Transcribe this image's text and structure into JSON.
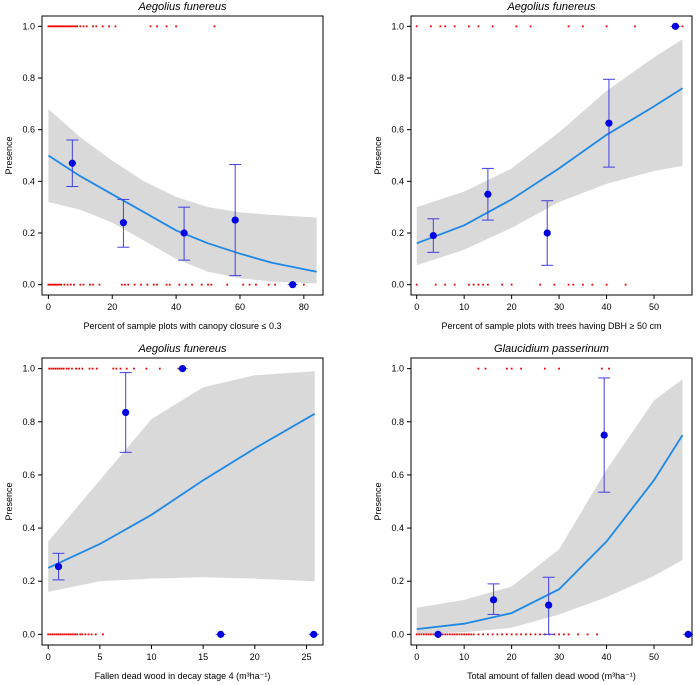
{
  "chart_data": [
    {
      "type": "line",
      "title": "Aegolius funereus",
      "xlabel": "Percent of sample plots with canopy closure ≤ 0.3",
      "ylabel": "Presence",
      "xlim": [
        -2,
        86
      ],
      "ylim": [
        -0.04,
        1.04
      ],
      "xticks": [
        0,
        20,
        40,
        60,
        80
      ],
      "yticks": [
        0.0,
        0.2,
        0.4,
        0.6,
        0.8,
        1.0
      ],
      "fit": [
        [
          0,
          0.5
        ],
        [
          10,
          0.42
        ],
        [
          20,
          0.35
        ],
        [
          30,
          0.28
        ],
        [
          40,
          0.21
        ],
        [
          50,
          0.16
        ],
        [
          60,
          0.12
        ],
        [
          70,
          0.085
        ],
        [
          84,
          0.05
        ]
      ],
      "band_upper": [
        [
          0,
          0.68
        ],
        [
          10,
          0.57
        ],
        [
          20,
          0.48
        ],
        [
          30,
          0.4
        ],
        [
          40,
          0.34
        ],
        [
          50,
          0.3
        ],
        [
          60,
          0.28
        ],
        [
          70,
          0.27
        ],
        [
          84,
          0.26
        ]
      ],
      "band_lower": [
        [
          0,
          0.32
        ],
        [
          10,
          0.29
        ],
        [
          20,
          0.24
        ],
        [
          30,
          0.17
        ],
        [
          40,
          0.1
        ],
        [
          50,
          0.05
        ],
        [
          60,
          0.025
        ],
        [
          70,
          0.012
        ],
        [
          84,
          0.005
        ]
      ],
      "binned_points": [
        {
          "x": 7.5,
          "y": 0.47,
          "lo": 0.38,
          "hi": 0.56
        },
        {
          "x": 23.5,
          "y": 0.24,
          "lo": 0.145,
          "hi": 0.33
        },
        {
          "x": 42.5,
          "y": 0.2,
          "lo": 0.095,
          "hi": 0.3
        },
        {
          "x": 58.5,
          "y": 0.25,
          "lo": 0.035,
          "hi": 0.465
        },
        {
          "x": 76.5,
          "y": 0.0,
          "lo": 0.0,
          "hi": 0.0
        }
      ],
      "rug_present": [
        0,
        0.5,
        1,
        1.5,
        2,
        2.5,
        3,
        3.5,
        4,
        4.5,
        5,
        5.5,
        6,
        6.5,
        7,
        7.5,
        8,
        8.5,
        9,
        10,
        11,
        12,
        14,
        15,
        17,
        19,
        21,
        32,
        34,
        37,
        40,
        52
      ],
      "rug_absent": [
        0,
        0.5,
        1,
        1.5,
        2,
        2.5,
        3,
        3.5,
        4,
        5,
        6,
        7,
        8,
        10,
        11,
        13,
        14,
        16,
        23,
        24,
        25,
        27,
        29,
        31,
        33,
        34,
        37,
        38,
        41,
        43,
        45,
        48,
        50,
        51,
        56,
        61,
        63,
        65,
        69,
        71,
        80
      ]
    },
    {
      "type": "line",
      "title": "Aegolius funereus",
      "xlabel": "Percent of sample plots with trees having DBH ≥ 50 cm",
      "ylabel": "Presence",
      "xlim": [
        -1.2,
        58
      ],
      "ylim": [
        -0.04,
        1.04
      ],
      "xticks": [
        0,
        10,
        20,
        30,
        40,
        50
      ],
      "yticks": [
        0.0,
        0.2,
        0.4,
        0.6,
        0.8,
        1.0
      ],
      "fit": [
        [
          0,
          0.16
        ],
        [
          10,
          0.23
        ],
        [
          20,
          0.33
        ],
        [
          30,
          0.45
        ],
        [
          40,
          0.58
        ],
        [
          50,
          0.69
        ],
        [
          56,
          0.76
        ]
      ],
      "band_upper": [
        [
          0,
          0.3
        ],
        [
          10,
          0.36
        ],
        [
          20,
          0.45
        ],
        [
          30,
          0.59
        ],
        [
          40,
          0.75
        ],
        [
          50,
          0.88
        ],
        [
          56,
          0.95
        ]
      ],
      "band_lower": [
        [
          0,
          0.075
        ],
        [
          10,
          0.135
        ],
        [
          20,
          0.22
        ],
        [
          30,
          0.32
        ],
        [
          40,
          0.39
        ],
        [
          50,
          0.44
        ],
        [
          56,
          0.46
        ]
      ],
      "binned_points": [
        {
          "x": 3.5,
          "y": 0.19,
          "lo": 0.125,
          "hi": 0.255
        },
        {
          "x": 15,
          "y": 0.35,
          "lo": 0.25,
          "hi": 0.45
        },
        {
          "x": 27.5,
          "y": 0.2,
          "lo": 0.075,
          "hi": 0.325
        },
        {
          "x": 40.5,
          "y": 0.625,
          "lo": 0.455,
          "hi": 0.795
        },
        {
          "x": 54.5,
          "y": 1.0,
          "lo": 1.0,
          "hi": 1.0
        }
      ],
      "rug_present": [
        0,
        3,
        5,
        6,
        8,
        11,
        13,
        16,
        21,
        24,
        32,
        35,
        40,
        46,
        55,
        56
      ],
      "rug_absent": [
        0,
        4,
        6,
        8,
        11,
        12,
        13,
        14,
        15,
        18,
        20,
        26,
        29,
        32,
        33,
        35,
        37,
        40,
        44
      ]
    },
    {
      "type": "line",
      "title": "Aegolius funereus",
      "xlabel": "Fallen dead wood in decay stage 4 (m³ha⁻¹)",
      "ylabel": "Presence",
      "xlim": [
        -0.6,
        26.6
      ],
      "ylim": [
        -0.04,
        1.04
      ],
      "xticks": [
        0,
        5,
        10,
        15,
        20,
        25
      ],
      "yticks": [
        0.0,
        0.2,
        0.4,
        0.6,
        0.8,
        1.0
      ],
      "fit": [
        [
          0,
          0.25
        ],
        [
          5,
          0.34
        ],
        [
          10,
          0.45
        ],
        [
          15,
          0.58
        ],
        [
          20,
          0.7
        ],
        [
          25.8,
          0.83
        ]
      ],
      "band_upper": [
        [
          0,
          0.35
        ],
        [
          5,
          0.58
        ],
        [
          10,
          0.81
        ],
        [
          15,
          0.93
        ],
        [
          20,
          0.975
        ],
        [
          25.8,
          0.99
        ]
      ],
      "band_lower": [
        [
          0,
          0.16
        ],
        [
          5,
          0.2
        ],
        [
          10,
          0.21
        ],
        [
          15,
          0.215
        ],
        [
          20,
          0.21
        ],
        [
          25.8,
          0.2
        ]
      ],
      "binned_points": [
        {
          "x": 1.0,
          "y": 0.255,
          "lo": 0.205,
          "hi": 0.305
        },
        {
          "x": 7.5,
          "y": 0.835,
          "lo": 0.685,
          "hi": 0.985
        },
        {
          "x": 13.0,
          "y": 1.0,
          "lo": 1.0,
          "hi": 1.0
        },
        {
          "x": 16.7,
          "y": 0.0,
          "lo": 0.0,
          "hi": 0.0
        },
        {
          "x": 25.7,
          "y": 0.0,
          "lo": 0.0,
          "hi": 0.0
        }
      ],
      "rug_present": [
        0.1,
        0.3,
        0.5,
        0.7,
        0.9,
        1.1,
        1.3,
        1.5,
        1.8,
        2.0,
        2.3,
        2.7,
        3.0,
        3.3,
        4.0,
        4.3,
        4.7,
        6.3,
        6.6,
        7.0,
        7.6,
        8.3,
        9.5,
        10.8,
        12.6
      ],
      "rug_absent": [
        0,
        0.2,
        0.4,
        0.6,
        0.8,
        1.0,
        1.2,
        1.4,
        1.6,
        1.8,
        2.0,
        2.2,
        2.4,
        2.6,
        2.8,
        3.1,
        3.3,
        3.6,
        3.9,
        4.2,
        4.6,
        5.3
      ]
    },
    {
      "type": "line",
      "title": "Glaucidium passerinum",
      "xlabel": "Total amount of fallen dead wood (m³ha⁻¹)",
      "ylabel": "Presence",
      "xlim": [
        -1.2,
        58
      ],
      "ylim": [
        -0.04,
        1.04
      ],
      "xticks": [
        0,
        10,
        20,
        30,
        40,
        50
      ],
      "yticks": [
        0.0,
        0.2,
        0.4,
        0.6,
        0.8,
        1.0
      ],
      "fit": [
        [
          0,
          0.02
        ],
        [
          10,
          0.04
        ],
        [
          20,
          0.08
        ],
        [
          30,
          0.17
        ],
        [
          40,
          0.35
        ],
        [
          50,
          0.58
        ],
        [
          56,
          0.75
        ]
      ],
      "band_upper": [
        [
          0,
          0.1
        ],
        [
          10,
          0.13
        ],
        [
          20,
          0.18
        ],
        [
          30,
          0.32
        ],
        [
          40,
          0.62
        ],
        [
          50,
          0.88
        ],
        [
          56,
          0.96
        ]
      ],
      "band_lower": [
        [
          0,
          0.002
        ],
        [
          10,
          0.008
        ],
        [
          20,
          0.025
        ],
        [
          30,
          0.075
        ],
        [
          40,
          0.14
        ],
        [
          50,
          0.22
        ],
        [
          56,
          0.28
        ]
      ],
      "binned_points": [
        {
          "x": 4.5,
          "y": 0.0,
          "lo": 0.0,
          "hi": 0.0
        },
        {
          "x": 16.2,
          "y": 0.13,
          "lo": 0.075,
          "hi": 0.19
        },
        {
          "x": 27.8,
          "y": 0.11,
          "lo": 0.0,
          "hi": 0.215
        },
        {
          "x": 39.5,
          "y": 0.75,
          "lo": 0.535,
          "hi": 0.965
        },
        {
          "x": 57.2,
          "y": 0.0,
          "lo": 0.0,
          "hi": 0.0
        }
      ],
      "rug_present": [
        13,
        14.5,
        19,
        20,
        22,
        27,
        30,
        39,
        40.5
      ],
      "rug_absent": [
        0,
        0.5,
        1,
        1.5,
        2,
        2.5,
        3,
        3.5,
        4,
        4.5,
        5,
        5.5,
        6,
        6.5,
        7,
        7.5,
        8,
        8.5,
        9,
        9.5,
        10,
        10.5,
        11,
        11.5,
        12,
        13,
        14,
        15,
        16,
        17,
        18,
        19,
        20,
        21,
        22,
        23,
        24,
        25,
        26,
        27,
        28,
        29,
        30,
        31,
        32,
        34,
        36,
        38
      ]
    }
  ],
  "colors": {
    "fit_line": "#1e88e5",
    "band": "#d9d9d9",
    "points": "#0000e0",
    "error_bars": "#4040e0",
    "rug": "#ee0000"
  }
}
